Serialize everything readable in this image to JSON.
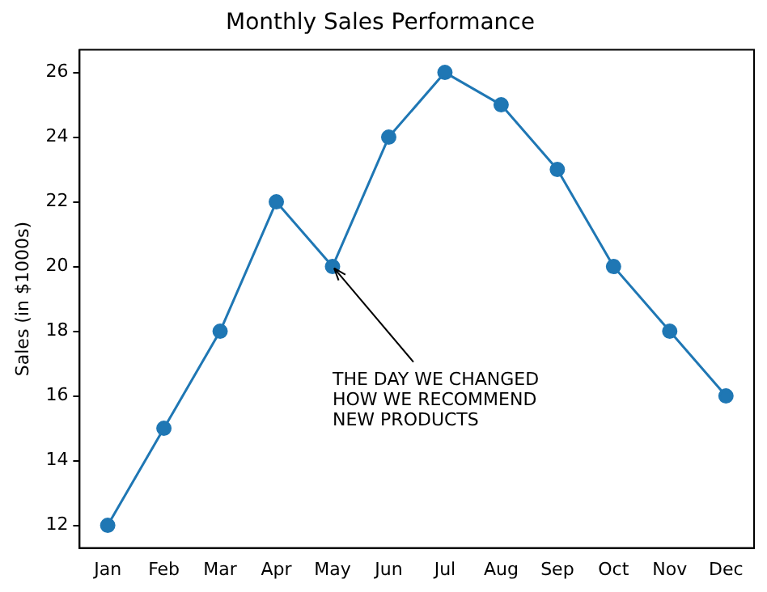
{
  "chart_data": {
    "type": "line",
    "title": "Monthly Sales Performance",
    "ylabel": "Sales (in $1000s)",
    "categories": [
      "Jan",
      "Feb",
      "Mar",
      "Apr",
      "May",
      "Jun",
      "Jul",
      "Aug",
      "Sep",
      "Oct",
      "Nov",
      "Dec"
    ],
    "series": [
      {
        "color": "#1f77b4",
        "values": [
          12,
          15,
          18,
          22,
          20,
          24,
          26,
          25,
          23,
          20,
          18,
          16
        ]
      }
    ],
    "ylim": [
      11.3,
      26.7
    ],
    "yticks": [
      12,
      14,
      16,
      18,
      20,
      22,
      24,
      26
    ],
    "grid": false,
    "legend": false,
    "marker": "circle",
    "line_style": "solid",
    "annotations": [
      {
        "text": "THE DAY WE CHANGED\nHOW WE RECOMMEND\nNEW PRODUCTS",
        "x": "May",
        "y": 20
      }
    ]
  }
}
